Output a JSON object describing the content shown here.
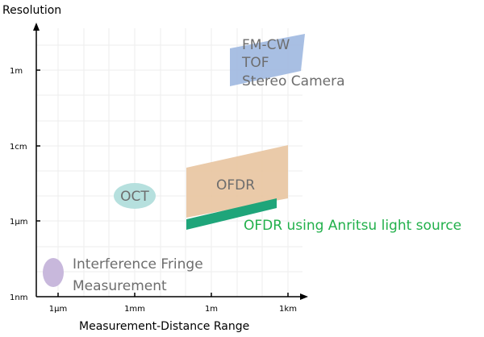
{
  "axes": {
    "y_title": "Resolution",
    "x_title": "Measurement-Distance Range",
    "y_ticks": [
      "1m",
      "1cm",
      "1μm",
      "1nm"
    ],
    "x_ticks": [
      "1μm",
      "1mm",
      "1m",
      "1km"
    ]
  },
  "regions": [
    {
      "lines": [
        "FM-CW",
        "TOF",
        "Stereo Camera"
      ]
    },
    {
      "lines": [
        "OFDR"
      ]
    },
    {
      "lines": [
        "OFDR using Anritsu light source"
      ]
    },
    {
      "lines": [
        "OCT"
      ]
    },
    {
      "lines": [
        "Interference Fringe",
        "Measurement"
      ]
    }
  ]
}
